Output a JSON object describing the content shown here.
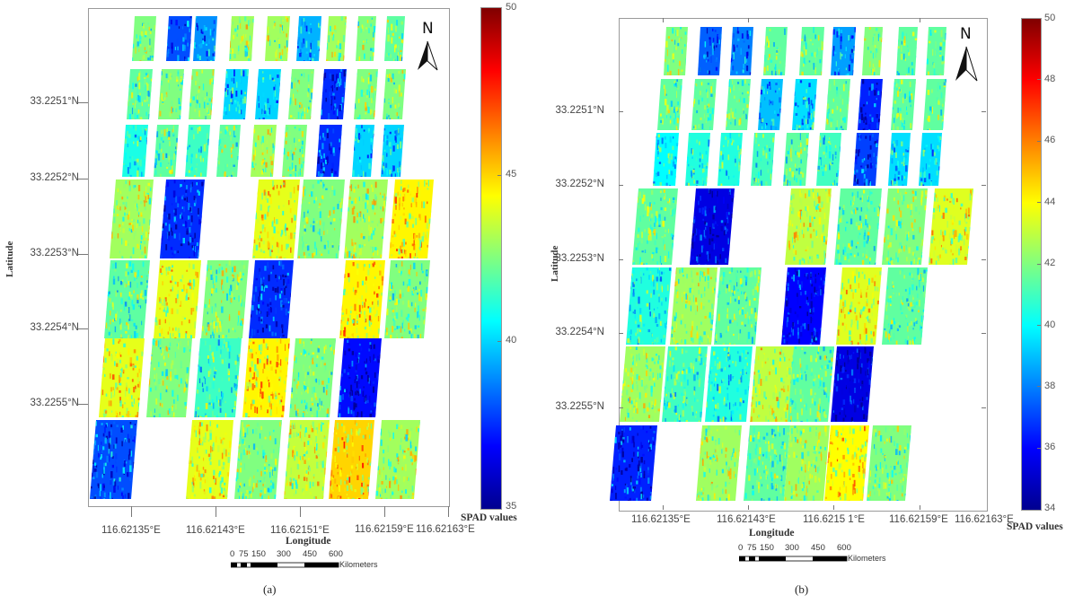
{
  "colormap": {
    "name": "jet",
    "stops": [
      "#00008f",
      "#0000ff",
      "#0080ff",
      "#00ffff",
      "#80ff80",
      "#ffff00",
      "#ff8000",
      "#ff0000",
      "#800000"
    ]
  },
  "chart_data": [
    {
      "type": "heatmap",
      "panel_label": "(a)",
      "xlabel": "Longitude",
      "ylabel": "Latitude",
      "x_ticks": [
        "116.62135°E",
        "116.62143°E",
        "116.62151°E",
        "116.62159°E",
        "116.62163°E"
      ],
      "y_ticks": [
        "33.2251°N",
        "33.2252°N",
        "33.2253°N",
        "33.2254°N",
        "33.2255°N"
      ],
      "colorbar": {
        "title": "SPAD values",
        "range": [
          35,
          50
        ],
        "ticks": [
          "50",
          "45",
          "40",
          "35"
        ]
      },
      "north_arrow": "N",
      "scale_bar": {
        "labels": [
          "0",
          "75",
          "150",
          "300",
          "450",
          "600"
        ],
        "unit": "Kilometers"
      },
      "plot_rows": [
        [
          42.5,
          38.0,
          39.0,
          43.0,
          43.0,
          39.5,
          43.0,
          42.5,
          42.0
        ],
        [
          42.0,
          42.5,
          42.5,
          40.0,
          40.0,
          42.5,
          37.5,
          42.5,
          42.5
        ],
        [
          41.0,
          42.0,
          41.5,
          42.0,
          43.0,
          42.5,
          37.5,
          40.0,
          40.0
        ],
        [
          43.0,
          37.5,
          null,
          44.0,
          42.5,
          43.0,
          44.5
        ],
        [
          42.0,
          44.0,
          42.5,
          37.5,
          null,
          44.5,
          42.5
        ],
        [
          44.0,
          42.5,
          41.5,
          44.5,
          42.5,
          37.0,
          null
        ],
        [
          38.0,
          null,
          44.0,
          42.5,
          43.5,
          45.0,
          43.0
        ]
      ]
    },
    {
      "type": "heatmap",
      "panel_label": "(b)",
      "xlabel": "Longitude",
      "ylabel": "Latitude",
      "x_ticks": [
        "116.62135°E",
        "116.62143°E",
        "116.6215 1°E",
        "116.62159°E",
        "116.62163°E"
      ],
      "y_ticks": [
        "33.2251°N",
        "33.2252°N",
        "33.2253°N",
        "33.2254°N",
        "33.2255°N"
      ],
      "colorbar": {
        "title": "SPAD values",
        "range": [
          34,
          50
        ],
        "ticks": [
          "50",
          "48",
          "46",
          "44",
          "42",
          "40",
          "38",
          "36",
          "34"
        ]
      },
      "north_arrow": "N",
      "scale_bar": {
        "labels": [
          "0",
          "75",
          "150",
          "300",
          "450",
          "600"
        ],
        "unit": "Kilometers"
      },
      "plot_rows": [
        [
          42.0,
          37.5,
          38.0,
          41.5,
          41.5,
          38.5,
          42.0,
          41.5,
          41.5
        ],
        [
          41.5,
          41.5,
          41.5,
          39.0,
          39.5,
          41.5,
          36.5,
          41.5,
          41.5
        ],
        [
          40.0,
          40.5,
          40.5,
          41.0,
          41.5,
          41.0,
          37.0,
          39.5,
          39.5
        ],
        [
          41.5,
          35.5,
          null,
          43.0,
          41.5,
          42.0,
          43.5
        ],
        [
          40.5,
          42.5,
          41.5,
          36.0,
          null,
          43.5,
          41.5
        ],
        [
          42.5,
          41.0,
          40.5,
          43.0,
          41.5,
          35.5,
          null
        ],
        [
          36.5,
          null,
          42.5,
          41.5,
          42.5,
          44.0,
          42.0
        ]
      ]
    }
  ]
}
